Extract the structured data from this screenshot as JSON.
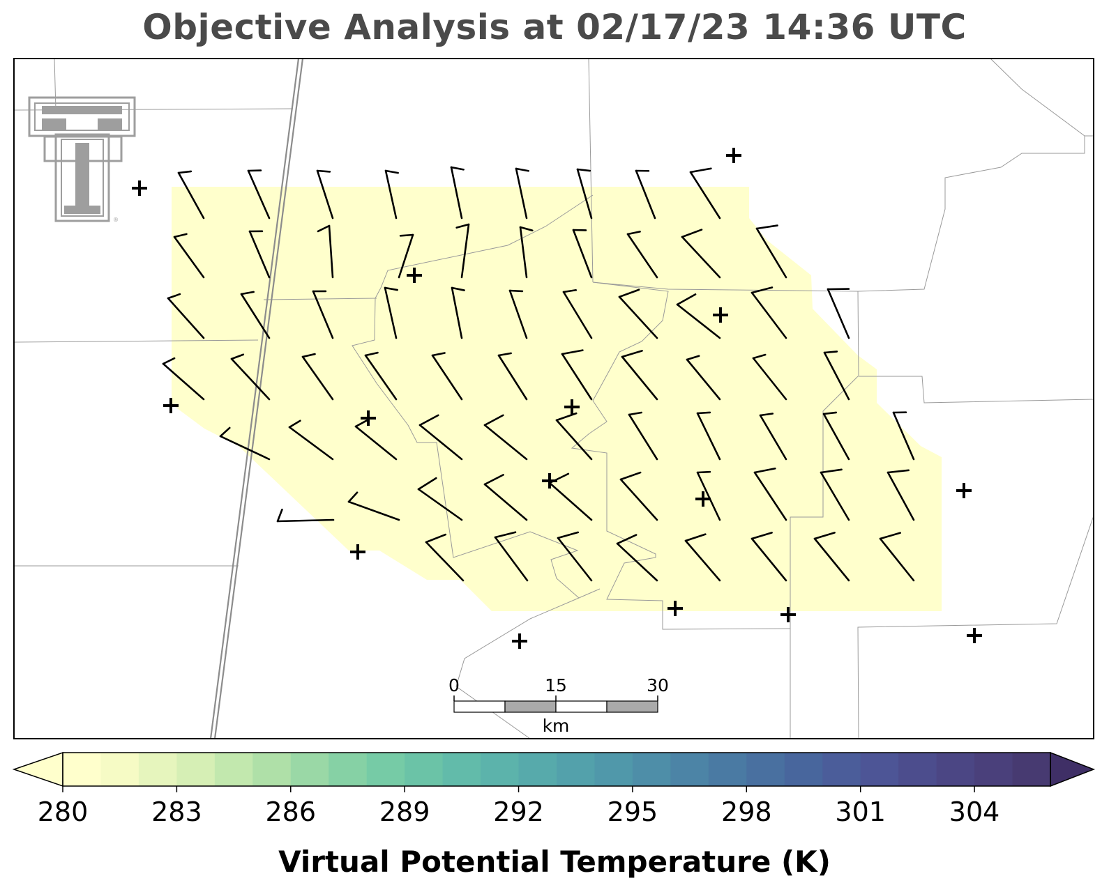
{
  "title": "Objective Analysis at 02/17/23 14:36 UTC",
  "colorbar": {
    "label": "Virtual Potential Temperature (K)",
    "ticks": [
      "280",
      "283",
      "286",
      "289",
      "292",
      "295",
      "298",
      "301",
      "304"
    ],
    "min": 280,
    "max": 306,
    "colors": [
      "#ffffcc",
      "#f6fbc5",
      "#e6f5bd",
      "#d6efb5",
      "#c2e8ae",
      "#afe0a8",
      "#9ad8a6",
      "#86d1a5",
      "#76cba6",
      "#6bc3a7",
      "#62bbaa",
      "#5cb3ab",
      "#57aaab",
      "#53a1ab",
      "#5098aa",
      "#4e8ea8",
      "#4c84a6",
      "#4a7aa3",
      "#4970a0",
      "#48669d",
      "#4b5d9a",
      "#4d5596",
      "#4c4d8d",
      "#4b4684",
      "#4a407b",
      "#473a71"
    ],
    "under_color": "#ffffcc",
    "over_color": "#3f2f66"
  },
  "scale_bar": {
    "ticks": [
      "0",
      "15",
      "30"
    ],
    "unit": "km"
  },
  "logo": {
    "name": "Texas Tech Double T",
    "registered_mark": "®"
  },
  "analysis_field": {
    "parameter": "Virtual Potential Temperature",
    "fill_color": "#ffffcc"
  },
  "wind_barbs": {
    "icon": "wind-barb",
    "color": "#000000"
  },
  "stations": {
    "icon": "plus-marker",
    "count": 16
  }
}
